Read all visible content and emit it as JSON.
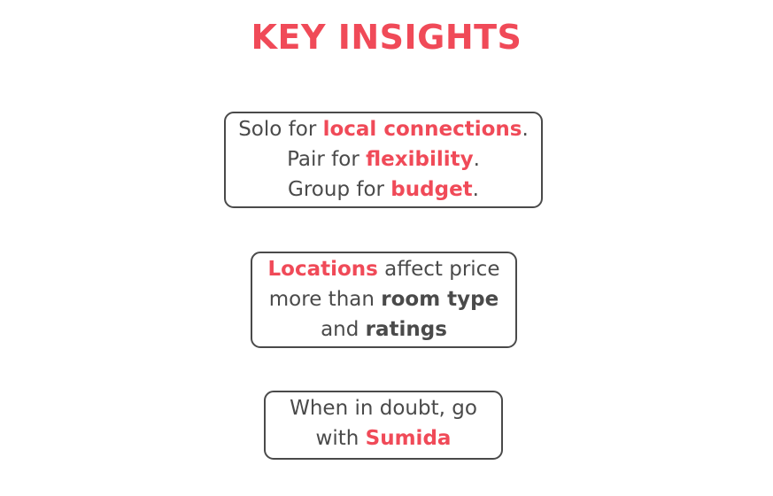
{
  "colors": {
    "accent": "#f04a58",
    "text": "#4a4a4a",
    "border": "#4a4a4a",
    "background": "#ffffff"
  },
  "title": "KEY INSIGHTS",
  "cards": [
    {
      "lines": [
        {
          "pre": "Solo for ",
          "highlight": "local connections",
          "post": "."
        },
        {
          "pre": "Pair for ",
          "highlight": "flexibility",
          "post": "."
        },
        {
          "pre": "Group for ",
          "highlight": "budget",
          "post": "."
        }
      ]
    },
    {
      "line1": {
        "highlight": "Locations",
        "post": " affect price"
      },
      "line2": {
        "pre": "more than ",
        "strong": "room type"
      },
      "line3": {
        "pre": "and ",
        "strong": "ratings"
      }
    },
    {
      "line1": {
        "text": "When in doubt, go"
      },
      "line2": {
        "pre": "with ",
        "highlight": "Sumida"
      }
    }
  ]
}
